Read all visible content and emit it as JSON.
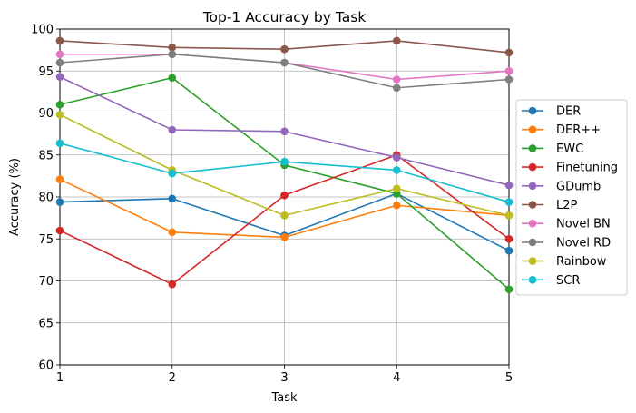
{
  "chart_data": {
    "type": "line",
    "title": "Top-1 Accuracy by Task",
    "xlabel": "Task",
    "ylabel": "Accuracy (%)",
    "x": [
      1,
      2,
      3,
      4,
      5
    ],
    "xticks": [
      "1",
      "2",
      "3",
      "4",
      "5"
    ],
    "xlim": [
      1,
      5
    ],
    "ylim": [
      60,
      100
    ],
    "yticks": [
      "60",
      "65",
      "70",
      "75",
      "80",
      "85",
      "90",
      "95",
      "100"
    ],
    "grid": true,
    "legend_position": "right",
    "series": [
      {
        "name": "DER",
        "color": "#1f77b4",
        "values": [
          79.4,
          79.8,
          75.4,
          80.4,
          73.6
        ]
      },
      {
        "name": "DER++",
        "color": "#ff7f0e",
        "values": [
          82.1,
          75.8,
          75.2,
          79.0,
          77.8
        ]
      },
      {
        "name": "EWC",
        "color": "#2ca02c",
        "values": [
          91.0,
          94.2,
          83.8,
          80.4,
          69.0
        ]
      },
      {
        "name": "Finetuning",
        "color": "#d62728",
        "values": [
          76.0,
          69.6,
          80.2,
          85.0,
          75.0
        ]
      },
      {
        "name": "GDumb",
        "color": "#9467bd",
        "values": [
          94.3,
          88.0,
          87.8,
          84.7,
          81.4
        ]
      },
      {
        "name": "L2P",
        "color": "#8c564b",
        "values": [
          98.6,
          97.8,
          97.6,
          98.6,
          97.2
        ]
      },
      {
        "name": "Novel BN",
        "color": "#e377c2",
        "values": [
          97.0,
          97.0,
          96.0,
          94.0,
          95.0
        ]
      },
      {
        "name": "Novel RD",
        "color": "#7f7f7f",
        "values": [
          96.0,
          97.0,
          96.0,
          93.0,
          94.0
        ]
      },
      {
        "name": "Rainbow",
        "color": "#bcbd22",
        "values": [
          89.8,
          83.2,
          77.8,
          81.0,
          77.8
        ]
      },
      {
        "name": "SCR",
        "color": "#17becf",
        "values": [
          86.4,
          82.8,
          84.2,
          83.2,
          79.4
        ]
      }
    ]
  }
}
